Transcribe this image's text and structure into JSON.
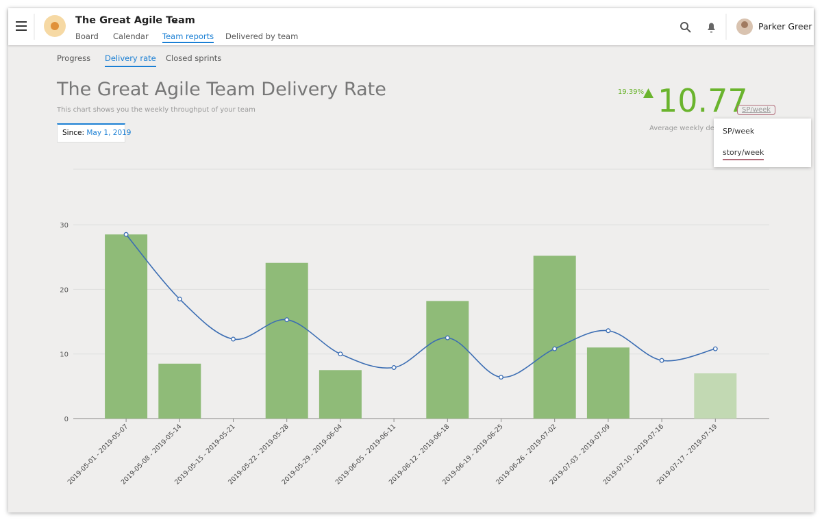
{
  "header": {
    "team_name": "The Great Agile Team",
    "nav": [
      "Board",
      "Calendar",
      "Team reports",
      "Delivered by team"
    ],
    "active_nav": 2,
    "user_name": "Parker Greer"
  },
  "subtabs": {
    "items": [
      "Progress",
      "Delivery rate",
      "Closed sprints"
    ],
    "active": 1
  },
  "report": {
    "title": "The Great Agile Team Delivery Rate",
    "subtitle": "This chart shows you the weekly throughput of your team",
    "since_label": "Since:",
    "since_value": "May 1, 2019"
  },
  "stats": {
    "change": "19.39%",
    "value": "10.77",
    "unit": "SP/week",
    "caption": "Average weekly delivery"
  },
  "dropdown": {
    "items": [
      "SP/week",
      "story/week"
    ]
  },
  "chart_data": {
    "type": "bar",
    "categories": [
      "2019-05-01 - 2019-05-07",
      "2019-05-08 - 2019-05-14",
      "2019-05-15 - 2019-05-21",
      "2019-05-22 - 2019-05-28",
      "2019-05-29 - 2019-06-04",
      "2019-06-05 - 2019-06-11",
      "2019-06-12 - 2019-06-18",
      "2019-06-19 - 2019-06-25",
      "2019-06-26 - 2019-07-02",
      "2019-07-03 - 2019-07-09",
      "2019-07-10 - 2019-07-16",
      "2019-07-17 - 2019-07-19"
    ],
    "series": [
      {
        "type": "bar",
        "color": "#8fbb78",
        "colors": [
          "#8fbb78",
          "#8fbb78",
          "#8fbb78",
          "#8fbb78",
          "#8fbb78",
          "#8fbb78",
          "#8fbb78",
          "#8fbb78",
          "#8fbb78",
          "#8fbb78",
          "#8fbb78",
          "#c2d9b3"
        ],
        "values": [
          28.5,
          8.5,
          0,
          24.1,
          7.5,
          0,
          18.2,
          0,
          25.2,
          11,
          0,
          7
        ]
      },
      {
        "type": "line",
        "color": "#3b6db3",
        "values": [
          28.5,
          18.5,
          12.3,
          15.3,
          10,
          7.9,
          12.5,
          6.4,
          10.8,
          13.6,
          9,
          10.8
        ]
      }
    ],
    "ylim": [
      0,
      38.6
    ],
    "yticks": [
      0,
      10,
      20,
      30
    ],
    "grid": true
  }
}
